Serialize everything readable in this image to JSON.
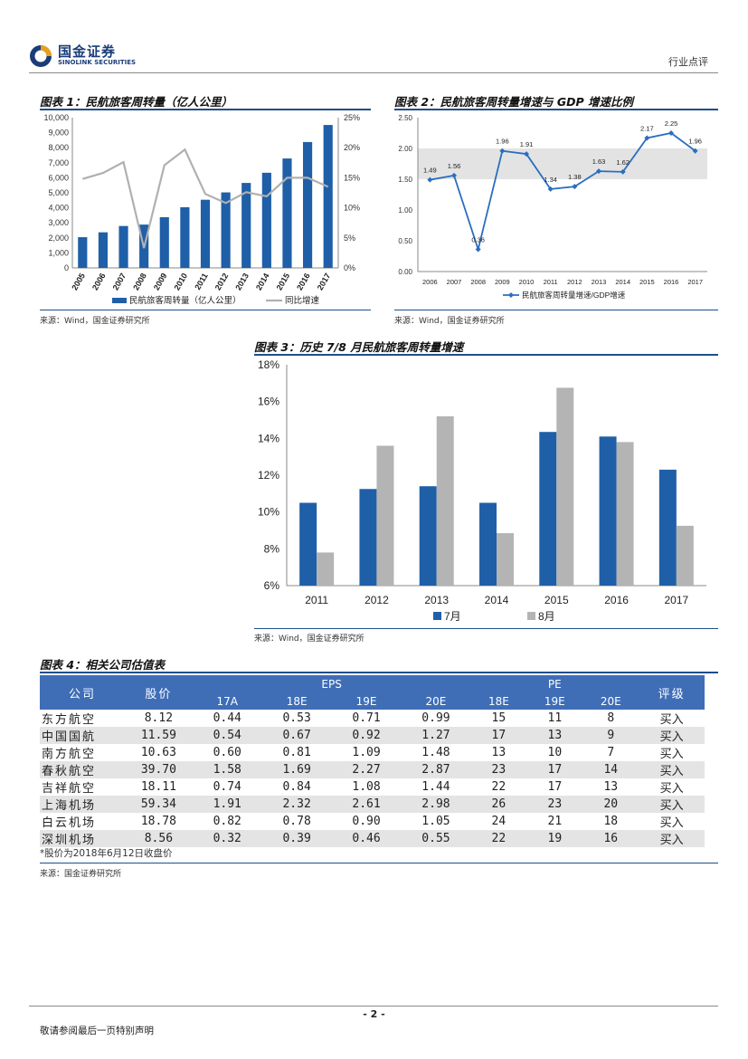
{
  "header": {
    "brand_cn": "国金证券",
    "brand_en": "SINOLINK SECURITIES",
    "report_type": "行业点评"
  },
  "fig1": {
    "title": "图表 1：民航旅客周转量（亿人公里）",
    "source": "来源：Wind，国金证券研究所",
    "legend_bar": "民航旅客周转量（亿人公里）",
    "legend_line": "同比增速"
  },
  "fig2": {
    "title": "图表 2：民航旅客周转量增速与 GDP 增速比例",
    "source": "来源：Wind，国金证券研究所",
    "legend": "民航旅客周转量增速/GDP增速"
  },
  "fig3": {
    "title": "图表 3：历史 7/8 月民航旅客周转量增速",
    "source": "来源：Wind，国金证券研究所",
    "legend_jul": "7月",
    "legend_aug": "8月"
  },
  "fig4": {
    "title": "图表 4：相关公司估值表",
    "source": "来源：国金证券研究所",
    "note": "*股价为2018年6月12日收盘价",
    "headers": {
      "company": "公司",
      "price": "股价",
      "eps": "EPS",
      "pe": "PE",
      "rating": "评级",
      "eps_years": [
        "17A",
        "18E",
        "19E",
        "20E"
      ],
      "pe_years": [
        "18E",
        "19E",
        "20E"
      ]
    },
    "rows": [
      {
        "name": "东方航空",
        "price": "8.12",
        "eps": [
          "0.44",
          "0.53",
          "0.71",
          "0.99"
        ],
        "pe": [
          "15",
          "11",
          "8"
        ],
        "rating": "买入"
      },
      {
        "name": "中国国航",
        "price": "11.59",
        "eps": [
          "0.54",
          "0.67",
          "0.92",
          "1.27"
        ],
        "pe": [
          "17",
          "13",
          "9"
        ],
        "rating": "买入"
      },
      {
        "name": "南方航空",
        "price": "10.63",
        "eps": [
          "0.60",
          "0.81",
          "1.09",
          "1.48"
        ],
        "pe": [
          "13",
          "10",
          "7"
        ],
        "rating": "买入"
      },
      {
        "name": "春秋航空",
        "price": "39.70",
        "eps": [
          "1.58",
          "1.69",
          "2.27",
          "2.87"
        ],
        "pe": [
          "23",
          "17",
          "14"
        ],
        "rating": "买入"
      },
      {
        "name": "吉祥航空",
        "price": "18.11",
        "eps": [
          "0.74",
          "0.84",
          "1.08",
          "1.44"
        ],
        "pe": [
          "22",
          "17",
          "13"
        ],
        "rating": "买入"
      },
      {
        "name": "上海机场",
        "price": "59.34",
        "eps": [
          "1.91",
          "2.32",
          "2.61",
          "2.98"
        ],
        "pe": [
          "26",
          "23",
          "20"
        ],
        "rating": "买入"
      },
      {
        "name": "白云机场",
        "price": "18.78",
        "eps": [
          "0.82",
          "0.78",
          "0.90",
          "1.05"
        ],
        "pe": [
          "24",
          "21",
          "18"
        ],
        "rating": "买入"
      },
      {
        "name": "深圳机场",
        "price": "8.56",
        "eps": [
          "0.32",
          "0.39",
          "0.46",
          "0.55"
        ],
        "pe": [
          "22",
          "19",
          "16"
        ],
        "rating": "买入"
      }
    ]
  },
  "footer": {
    "page": "- 2 -",
    "disclaimer": "敬请参阅最后一页特别声明"
  },
  "chart_data": [
    {
      "type": "bar",
      "categories": [
        "2005",
        "2006",
        "2007",
        "2008",
        "2009",
        "2010",
        "2011",
        "2012",
        "2013",
        "2014",
        "2015",
        "2016",
        "2017"
      ],
      "series": [
        {
          "name": "民航旅客周转量（亿人公里）",
          "type": "bar",
          "axis": "left",
          "color": "#1f5fa8",
          "values": [
            2045,
            2370,
            2791,
            2883,
            3375,
            4039,
            4537,
            5026,
            5657,
            6334,
            7283,
            8378,
            9513
          ]
        },
        {
          "name": "同比增速",
          "type": "line",
          "axis": "right",
          "color": "#b0b0b0",
          "values": [
            14.8,
            15.8,
            17.6,
            3.3,
            17.1,
            19.7,
            12.3,
            10.8,
            12.6,
            11.9,
            15.0,
            15.0,
            13.5
          ]
        }
      ],
      "ylim": [
        0,
        10000
      ],
      "y2lim": [
        0,
        25
      ],
      "yticks": [
        "0",
        "1,000",
        "2,000",
        "3,000",
        "4,000",
        "5,000",
        "6,000",
        "7,000",
        "8,000",
        "9,000",
        "10,000"
      ],
      "y2ticks": [
        "0%",
        "5%",
        "10%",
        "15%",
        "20%",
        "25%"
      ],
      "legend": "bottom"
    },
    {
      "type": "line",
      "categories": [
        "2006",
        "2007",
        "2008",
        "2009",
        "2010",
        "2011",
        "2012",
        "2013",
        "2014",
        "2015",
        "2016",
        "2017"
      ],
      "series": [
        {
          "name": "民航旅客周转量增速/GDP增速",
          "color": "#2a6ebf",
          "values": [
            1.49,
            1.56,
            0.36,
            1.96,
            1.91,
            1.34,
            1.38,
            1.63,
            1.62,
            2.17,
            2.25,
            1.96
          ]
        }
      ],
      "ylim": [
        0,
        2.5
      ],
      "yticks": [
        "0.00",
        "0.50",
        "1.00",
        "1.50",
        "2.00",
        "2.50"
      ],
      "band": [
        1.5,
        2.0
      ],
      "data_labels": [
        "1.49",
        "1.56",
        "0.36",
        "1.96",
        "1.91",
        "1.34",
        "1.38",
        "1.63",
        "1.62",
        "2.17",
        "2.25",
        "1.96"
      ],
      "legend": "bottom"
    },
    {
      "type": "bar",
      "categories": [
        "2011",
        "2012",
        "2013",
        "2014",
        "2015",
        "2016",
        "2017"
      ],
      "series": [
        {
          "name": "7月",
          "color": "#1f5fa8",
          "values": [
            10.5,
            11.25,
            11.4,
            10.5,
            14.35,
            14.1,
            12.3
          ]
        },
        {
          "name": "8月",
          "color": "#b4b4b4",
          "values": [
            7.8,
            13.6,
            15.2,
            8.85,
            16.75,
            13.8,
            9.25
          ]
        }
      ],
      "ylim": [
        6,
        18
      ],
      "yticks": [
        "6%",
        "8%",
        "10%",
        "12%",
        "14%",
        "16%",
        "18%"
      ],
      "legend": "bottom"
    }
  ]
}
